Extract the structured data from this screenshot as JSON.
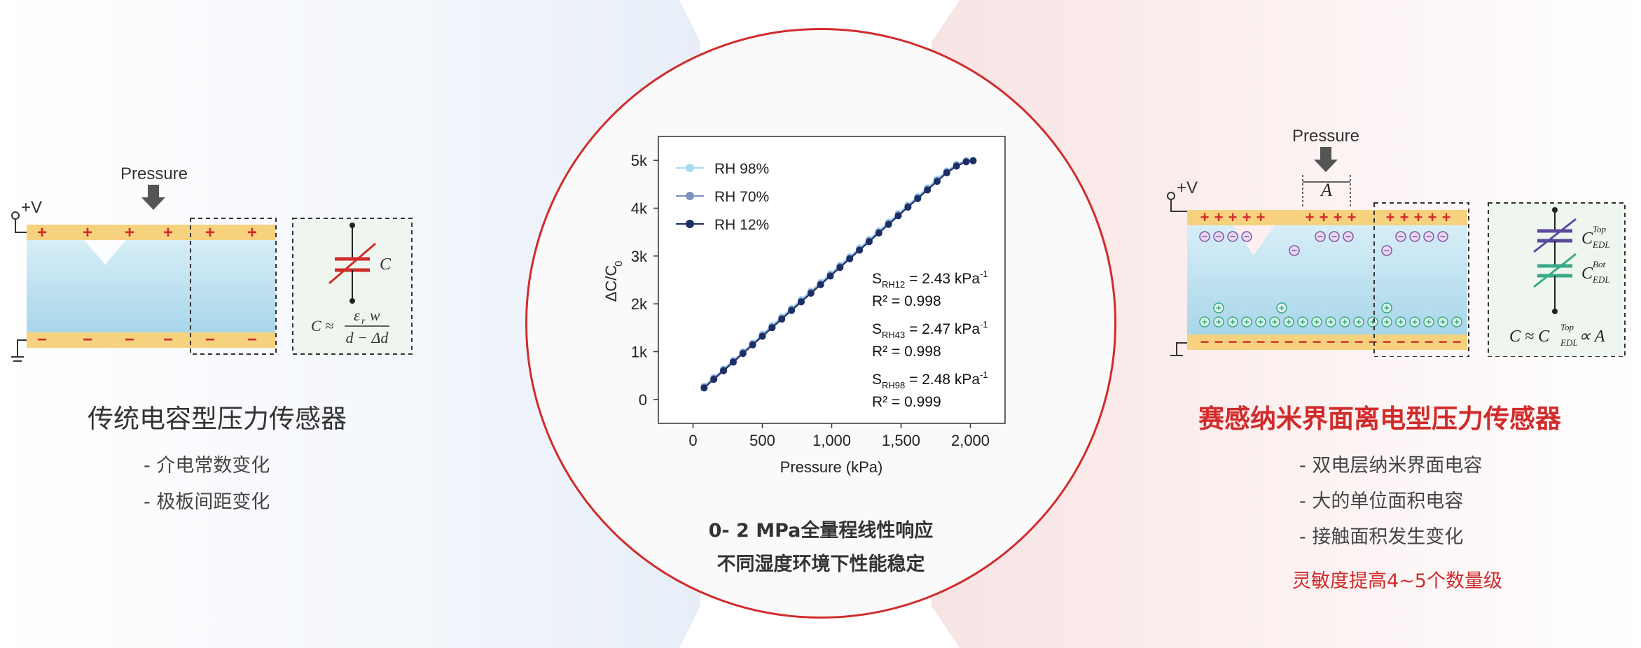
{
  "left": {
    "pressure_label": "Pressure",
    "voltage_label": "+V",
    "cap_symbol": "C",
    "formula_left": "C ≈",
    "formula_num": "ε",
    "formula_num_sub": "r",
    "formula_num_tail": "w",
    "formula_den": "d − Δd",
    "plus_sign": "+",
    "minus_sign": "−",
    "title": "传统电容型压力传感器",
    "bullets": [
      "- 介电常数变化",
      "- 极板间距变化"
    ]
  },
  "center": {
    "caption_line1": "0- 2 MPa全量程线性响应",
    "caption_line2": "不同湿度环境下性能稳定"
  },
  "right": {
    "pressure_label": "Pressure",
    "voltage_label": "+V",
    "area_label": "A",
    "cap_top": "C",
    "cap_top_sub": "EDL",
    "cap_top_sup": "Top",
    "cap_bot": "C",
    "cap_bot_sub": "EDL",
    "cap_bot_sup": "Bot",
    "formula": "C ≈ C",
    "formula_sub": "EDL",
    "formula_sup": "Top",
    "formula_tail": " ∝ A",
    "plus_sign": "+",
    "minus_sign": "−",
    "title": "赛感纳米界面离电型压力传感器",
    "bullets": [
      "- 双电层纳米界面电容",
      "- 大的单位面积电容",
      "- 接触面积发生变化"
    ],
    "emphasis": "灵敏度提高4~5个数量级"
  },
  "colors": {
    "accent_red": "#d12b2b",
    "electrode": "#f6d27e",
    "dielectric": "#bfe3f2",
    "rh98": "#a9d8f2",
    "rh70": "#7f8fbd",
    "rh12": "#1b2f66"
  },
  "chart_data": {
    "type": "line",
    "xlabel": "Pressure (kPa)",
    "ylabel": "ΔC/C",
    "ylabel_sub": "0",
    "xlim": [
      -250,
      2250
    ],
    "ylim": [
      -500,
      5500
    ],
    "xticks": [
      0,
      500,
      1000,
      1500,
      2000
    ],
    "xtick_labels": [
      "0",
      "500",
      "1,000",
      "1,500",
      "2,000"
    ],
    "yticks": [
      0,
      1000,
      2000,
      3000,
      4000,
      5000
    ],
    "ytick_labels": [
      "0",
      "1k",
      "2k",
      "3k",
      "4k",
      "5k"
    ],
    "legend_position": "top-left",
    "series": [
      {
        "name": "RH 98%",
        "color": "#a9d8f2",
        "x": [
          80,
          150,
          220,
          290,
          360,
          430,
          500,
          570,
          640,
          710,
          780,
          850,
          920,
          990,
          1060,
          1130,
          1200,
          1270,
          1340,
          1410,
          1480,
          1550,
          1620,
          1690,
          1760,
          1830,
          1900,
          1970,
          2020
        ],
        "y": [
          280,
          460,
          640,
          820,
          1000,
          1180,
          1370,
          1550,
          1730,
          1910,
          2090,
          2270,
          2450,
          2630,
          2810,
          2990,
          3170,
          3350,
          3530,
          3710,
          3890,
          4070,
          4250,
          4430,
          4610,
          4780,
          4920,
          5000,
          5000
        ]
      },
      {
        "name": "RH 70%",
        "color": "#7f8fbd",
        "x": [
          80,
          150,
          220,
          290,
          360,
          430,
          500,
          570,
          640,
          710,
          780,
          850,
          920,
          990,
          1060,
          1130,
          1200,
          1270,
          1340,
          1410,
          1480,
          1550,
          1620,
          1690,
          1760,
          1830,
          1900,
          1970,
          2020
        ],
        "y": [
          260,
          440,
          620,
          800,
          980,
          1160,
          1340,
          1520,
          1700,
          1880,
          2060,
          2240,
          2420,
          2600,
          2780,
          2960,
          3140,
          3320,
          3500,
          3680,
          3860,
          4040,
          4220,
          4400,
          4580,
          4760,
          4900,
          4980,
          5000
        ]
      },
      {
        "name": "RH 12%",
        "color": "#1b2f66",
        "x": [
          80,
          150,
          220,
          290,
          360,
          430,
          500,
          570,
          640,
          710,
          780,
          850,
          920,
          990,
          1060,
          1130,
          1200,
          1270,
          1340,
          1410,
          1480,
          1550,
          1620,
          1690,
          1760,
          1830,
          1900,
          1970,
          2020
        ],
        "y": [
          240,
          420,
          600,
          780,
          960,
          1140,
          1320,
          1500,
          1680,
          1860,
          2040,
          2220,
          2400,
          2580,
          2760,
          2940,
          3120,
          3300,
          3480,
          3660,
          3840,
          4020,
          4200,
          4380,
          4560,
          4740,
          4880,
          4970,
          4990
        ]
      }
    ],
    "annotations": [
      {
        "s": "S",
        "sub": "RH12",
        "val": " = 2.43 kPa",
        "sup": "-1",
        "r2": "R² = 0.998"
      },
      {
        "s": "S",
        "sub": "RH43",
        "val": " = 2.47 kPa",
        "sup": "-1",
        "r2": "R² = 0.998"
      },
      {
        "s": "S",
        "sub": "RH98",
        "val": " = 2.48 kPa",
        "sup": "-1",
        "r2": "R² = 0.999"
      }
    ]
  }
}
